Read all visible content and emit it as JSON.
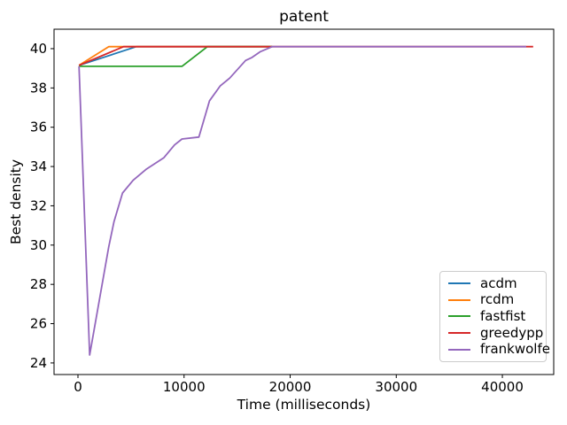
{
  "chart_data": {
    "type": "line",
    "title": "patent",
    "xlabel": "Time (milliseconds)",
    "ylabel": "Best density",
    "xlim": [
      -2255,
      44840
    ],
    "ylim": [
      23.41,
      40.99
    ],
    "x_ticks": [
      "0",
      "10000",
      "20000",
      "30000",
      "40000"
    ],
    "x_tick_values": [
      0,
      10000,
      20000,
      30000,
      40000
    ],
    "y_ticks": [
      "24",
      "26",
      "28",
      "30",
      "32",
      "34",
      "36",
      "38",
      "40"
    ],
    "y_tick_values": [
      24,
      26,
      28,
      30,
      32,
      34,
      36,
      38,
      40
    ],
    "grid": false,
    "legend_position": "lower right",
    "series": [
      {
        "name": "acdm",
        "color": "#1f77b4",
        "points": [
          [
            100,
            39.15
          ],
          [
            5500,
            40.1
          ],
          [
            18300,
            40.1
          ]
        ]
      },
      {
        "name": "rcdm",
        "color": "#ff7f0e",
        "points": [
          [
            100,
            39.15
          ],
          [
            2900,
            40.1
          ],
          [
            18300,
            40.1
          ]
        ]
      },
      {
        "name": "fastfist",
        "color": "#2ca02c",
        "points": [
          [
            100,
            39.1
          ],
          [
            9800,
            39.1
          ],
          [
            12200,
            40.1
          ],
          [
            18300,
            40.1
          ]
        ]
      },
      {
        "name": "greedypp",
        "color": "#d62728",
        "points": [
          [
            100,
            39.15
          ],
          [
            4300,
            40.1
          ],
          [
            42900,
            40.1
          ]
        ]
      },
      {
        "name": "frankwolfe",
        "color": "#9467bd",
        "points": [
          [
            100,
            39.1
          ],
          [
            1100,
            24.4
          ],
          [
            2900,
            29.9
          ],
          [
            3400,
            31.2
          ],
          [
            4200,
            32.65
          ],
          [
            5200,
            33.3
          ],
          [
            6400,
            33.85
          ],
          [
            8100,
            34.45
          ],
          [
            9100,
            35.1
          ],
          [
            9800,
            35.4
          ],
          [
            11400,
            35.5
          ],
          [
            12400,
            37.35
          ],
          [
            13400,
            38.1
          ],
          [
            14300,
            38.5
          ],
          [
            15800,
            39.4
          ],
          [
            16400,
            39.55
          ],
          [
            17200,
            39.85
          ],
          [
            18300,
            40.1
          ],
          [
            42250,
            40.1
          ]
        ]
      }
    ]
  }
}
